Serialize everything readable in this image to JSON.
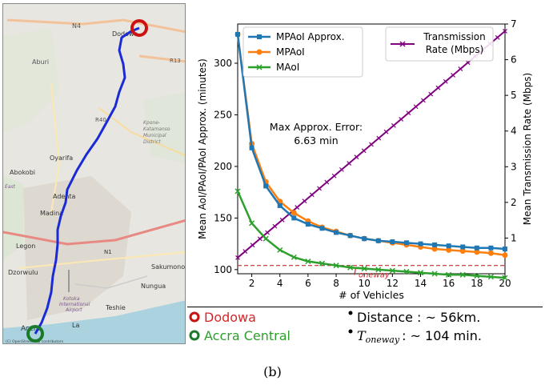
{
  "map": {
    "places": [
      "N4",
      "Dodowa",
      "Aburi",
      "R13",
      "R40",
      "Kpone-",
      "Katamanso",
      "Municipal",
      "District",
      "Oyarifa",
      "Abokobi",
      "East",
      "Adenta",
      "Madina",
      "Legon",
      "N1",
      "Sakumono",
      "Dzorwulu",
      "Kotoka",
      "International",
      "Airport",
      "Nungua",
      "Teshie",
      "Accra",
      "La"
    ],
    "attribution": "(C) OpenStreetMap contributors",
    "route_color": "#1a2bd6",
    "start_color": "#cc1111",
    "end_color": "#1b7a2a"
  },
  "legend": {
    "origin": "Dodowa",
    "destination": "Accra Central",
    "distance": "Distance : ~ 56km.",
    "toneway_prefix": "T",
    "toneway_sub": "oneway",
    "toneway_value": ": ~ 104 min.",
    "origin_color": "#d62728",
    "dest_color": "#2ca02c"
  },
  "caption": "(b)",
  "chart_data": {
    "type": "line",
    "x": [
      1,
      2,
      3,
      4,
      5,
      6,
      7,
      8,
      9,
      10,
      11,
      12,
      13,
      14,
      15,
      16,
      17,
      18,
      19,
      20
    ],
    "xlabel": "# of Vehicles",
    "ylabel": "Mean AoI/PAoI/PAoI Approx. (minutes)",
    "ylabel_right": "Mean Transmission Rate (Mbps)",
    "xlim": [
      1,
      20
    ],
    "ylim": [
      96,
      338
    ],
    "ylim_right": [
      0,
      7
    ],
    "xticks": [
      2,
      4,
      6,
      8,
      10,
      12,
      14,
      16,
      18,
      20
    ],
    "yticks": [
      100,
      150,
      200,
      250,
      300
    ],
    "yticks_right": [
      1,
      2,
      3,
      4,
      5,
      6,
      7
    ],
    "series": [
      {
        "name": "MPAoI Approx.",
        "color": "#1f77b4",
        "marker": "square",
        "values": [
          328,
          218,
          181,
          162,
          150,
          144,
          140,
          136,
          133,
          130,
          128,
          127,
          126,
          125,
          124,
          123,
          122,
          121,
          121,
          120
        ]
      },
      {
        "name": "MPAoI",
        "color": "#ff7f0e",
        "marker": "circle",
        "values": [
          328,
          222,
          185,
          166,
          155,
          147,
          141,
          137,
          133,
          130,
          128,
          126,
          124,
          122,
          120,
          119,
          118,
          117,
          116,
          114
        ]
      },
      {
        "name": "MAoI",
        "color": "#2ca02c",
        "marker": "x",
        "values": [
          176,
          145,
          130,
          119,
          112,
          108,
          106,
          104,
          102,
          101,
          100,
          99,
          98,
          97,
          96,
          95,
          95,
          94,
          93,
          92
        ]
      }
    ],
    "right_series": {
      "name": "Transmission Rate (Mbps)",
      "name_lines": [
        "Transmission",
        "Rate (Mbps)"
      ],
      "color": "#800080",
      "x_start": 1,
      "x_end": 20,
      "y_start": 0.45,
      "y_end": 6.8
    },
    "reference_line": {
      "value": 104,
      "color": "#d62728",
      "label_prefix": "T",
      "label_sub": "oneway"
    },
    "annotation": {
      "line1": "Max Approx. Error:",
      "line2": "6.63 min"
    }
  }
}
